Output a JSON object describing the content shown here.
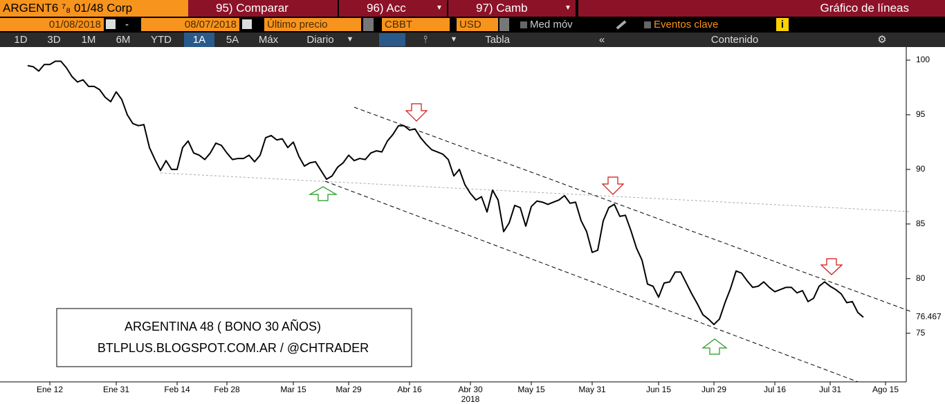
{
  "toolbar": {
    "security": "ARGENT6 ⁷₈ 01/48 Corp",
    "compare": "95) Comparar",
    "actions": "96) Acc",
    "change": "97) Camb",
    "chart_kind": "Gráfico de líneas",
    "start_date": "01/08/2018",
    "date_separator": "-",
    "end_date": "08/07/2018",
    "field": "Último precio",
    "source": "CBBT",
    "currency": "USD",
    "moving_average": "Med móv",
    "key_events": "Eventos clave",
    "info": "i",
    "periods": [
      "1D",
      "3D",
      "1M",
      "6M",
      "YTD",
      "1A",
      "5A",
      "Máx"
    ],
    "frequency": "Diario",
    "table": "Tabla",
    "contents": "Contenido"
  },
  "chart_data": {
    "type": "line",
    "color": "#000000",
    "grid": false,
    "xlabel": "2018",
    "annotation": [
      "ARGENTINA 48 ( BONO 30 AÑOS)",
      "BTLPLUS.BLOGSPOT.COM.AR / @CHTRADER"
    ],
    "ylim": [
      70.55,
      101.2
    ],
    "yticks": [
      75,
      80,
      85,
      90,
      95,
      100
    ],
    "categories": [
      null,
      null,
      null,
      null,
      "Ene 12",
      null,
      null,
      null,
      null,
      null,
      null,
      null,
      null,
      null,
      null,
      null,
      "Ene 31",
      null,
      null,
      null,
      null,
      null,
      null,
      null,
      null,
      null,
      null,
      "Feb 14",
      null,
      null,
      null,
      null,
      null,
      null,
      null,
      null,
      "Feb 28",
      null,
      null,
      null,
      null,
      null,
      null,
      null,
      null,
      null,
      null,
      null,
      "Mar 15",
      null,
      null,
      null,
      null,
      null,
      null,
      null,
      null,
      null,
      "Mar 29",
      null,
      null,
      null,
      null,
      null,
      null,
      null,
      null,
      null,
      null,
      "Abr 16",
      null,
      null,
      null,
      null,
      null,
      null,
      null,
      null,
      null,
      null,
      "Abr 30",
      null,
      null,
      null,
      null,
      null,
      null,
      null,
      null,
      null,
      null,
      "May 15",
      null,
      null,
      null,
      null,
      null,
      null,
      null,
      null,
      null,
      null,
      "May 31",
      null,
      null,
      null,
      null,
      null,
      null,
      null,
      null,
      null,
      null,
      null,
      "Jun 15",
      null,
      null,
      null,
      null,
      null,
      null,
      null,
      null,
      null,
      "Jun 29",
      null,
      null,
      null,
      null,
      null,
      null,
      null,
      null,
      null,
      null,
      "Jul 16",
      null,
      null,
      null,
      null,
      null,
      null,
      null,
      null,
      null,
      "Jul 31",
      null,
      null,
      null,
      null,
      null,
      null,
      null,
      null,
      null,
      "Ago 15"
    ],
    "values": [
      99.5,
      99.4,
      99.0,
      99.6,
      99.6,
      99.9,
      99.9,
      99.3,
      98.5,
      98.0,
      98.2,
      97.6,
      97.6,
      97.3,
      96.6,
      96.2,
      97.1,
      96.4,
      95.0,
      94.2,
      94.0,
      94.1,
      92.0,
      90.9,
      89.9,
      90.8,
      90.0,
      90.0,
      92.0,
      92.6,
      91.5,
      91.3,
      90.9,
      91.5,
      92.4,
      92.2,
      91.5,
      90.9,
      91.0,
      91.0,
      91.3,
      90.7,
      91.3,
      92.9,
      93.1,
      92.7,
      92.8,
      92.0,
      92.5,
      91.2,
      90.3,
      90.6,
      90.7,
      89.9,
      89.1,
      89.4,
      90.2,
      90.6,
      91.3,
      90.8,
      91.0,
      90.9,
      91.5,
      91.7,
      91.6,
      92.6,
      93.2,
      94.0,
      94.0,
      93.6,
      93.7,
      92.9,
      92.3,
      91.8,
      91.6,
      91.4,
      90.9,
      89.4,
      90.0,
      88.6,
      87.8,
      87.2,
      87.5,
      86.1,
      88.1,
      87.2,
      84.3,
      85.1,
      86.7,
      86.5,
      84.8,
      86.6,
      87.1,
      87.0,
      86.8,
      87.0,
      87.2,
      87.6,
      86.9,
      87.0,
      85.3,
      84.3,
      82.4,
      82.6,
      85.3,
      86.5,
      86.8,
      85.7,
      85.8,
      84.4,
      82.8,
      81.7,
      79.5,
      79.3,
      78.3,
      79.6,
      79.7,
      80.6,
      80.6,
      79.6,
      78.6,
      77.7,
      76.7,
      76.3,
      75.8,
      76.3,
      77.8,
      79.1,
      80.7,
      80.5,
      79.8,
      79.2,
      79.3,
      79.7,
      79.2,
      78.8,
      79.0,
      79.2,
      79.2,
      78.7,
      78.9,
      77.9,
      78.2,
      79.3,
      79.7,
      79.3,
      79.0,
      78.6,
      77.8,
      77.9,
      76.9,
      76.467,
      null,
      null,
      null,
      null
    ]
  }
}
